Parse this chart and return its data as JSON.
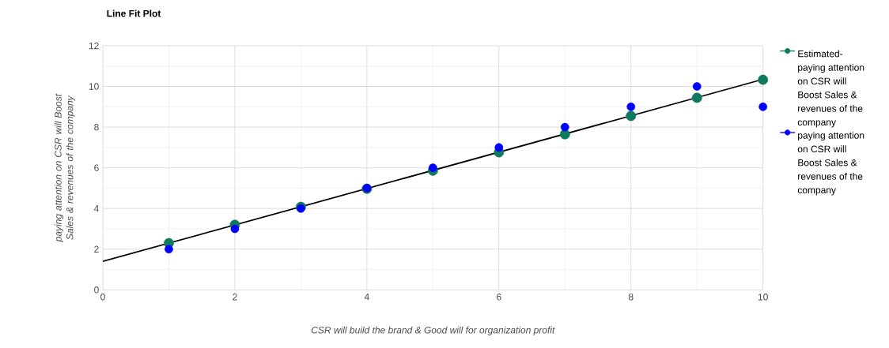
{
  "chart_data": {
    "type": "scatter",
    "title": "Line Fit Plot",
    "xlabel": "CSR will build the brand & Good will for organization profit",
    "ylabel": "paying attention on CSR will Boost Sales & revenues of the company",
    "x": [
      1,
      2,
      3,
      4,
      5,
      6,
      7,
      8,
      9,
      10
    ],
    "series": [
      {
        "name": "Estimated-paying attention on CSR will Boost Sales & revenues of the company",
        "color": "#0f7a5e",
        "values": [
          2.3,
          3.2,
          4.08,
          4.97,
          5.86,
          6.76,
          7.65,
          8.55,
          9.44,
          10.33
        ]
      },
      {
        "name": "paying attention on CSR will Boost Sales & revenues of the company",
        "color": "#0000ff",
        "values": [
          2,
          3,
          4,
          5,
          6,
          7,
          8,
          9,
          10,
          9
        ]
      },
      {
        "type": "line",
        "color": "#000000",
        "marker": "none",
        "x": [
          0,
          10
        ],
        "values": [
          1.4,
          10.35
        ]
      }
    ],
    "xlim": [
      0,
      10
    ],
    "ylim": [
      0,
      12
    ],
    "xticks": [
      0,
      2,
      4,
      6,
      8,
      10
    ],
    "yticks": [
      0,
      2,
      4,
      6,
      8,
      10,
      12
    ],
    "grid": true,
    "legend": "right",
    "marker": "circle"
  }
}
